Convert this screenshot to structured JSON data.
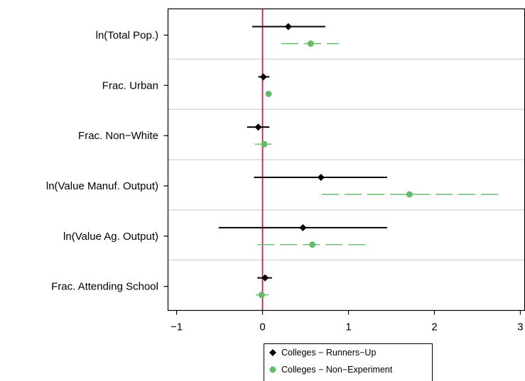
{
  "chart_data": {
    "type": "coefficient-plot",
    "title": "",
    "xlabel": "",
    "ylabel": "",
    "xlim": [
      -1.1,
      3.05
    ],
    "xticks": [
      -1,
      0,
      1,
      2,
      3
    ],
    "xtick_labels": [
      "−1",
      "0",
      "1",
      "2",
      "3"
    ],
    "reference_line": {
      "x": 0,
      "color": "#d6174a"
    },
    "grid": "horizontal separators between variables",
    "categories": [
      "ln(Total Pop.)",
      "Frac. Urban",
      "Frac. Non−White",
      "ln(Value Manuf. Output)",
      "ln(Value Ag. Output)",
      "Frac. Attending School"
    ],
    "series": [
      {
        "name": "Colleges − Runners−Up",
        "color": "#000000",
        "marker": "diamond",
        "line": "solid",
        "estimates": [
          0.3,
          0.01,
          -0.05,
          0.68,
          0.47,
          0.03
        ],
        "ci_low": [
          -0.12,
          -0.05,
          -0.18,
          -0.1,
          -0.51,
          -0.06
        ],
        "ci_high": [
          0.73,
          0.08,
          0.08,
          1.45,
          1.45,
          0.11
        ]
      },
      {
        "name": "Colleges − Non−Experiment",
        "color": "#66bb6a",
        "marker": "circle",
        "line": "dashed",
        "estimates": [
          0.56,
          0.07,
          0.02,
          1.71,
          0.58,
          -0.01
        ],
        "ci_low": [
          0.22,
          0.05,
          -0.09,
          0.69,
          -0.06,
          -0.08
        ],
        "ci_high": [
          0.89,
          0.1,
          0.11,
          2.75,
          1.23,
          0.07
        ]
      }
    ],
    "legend": {
      "position": "bottom-center"
    }
  }
}
